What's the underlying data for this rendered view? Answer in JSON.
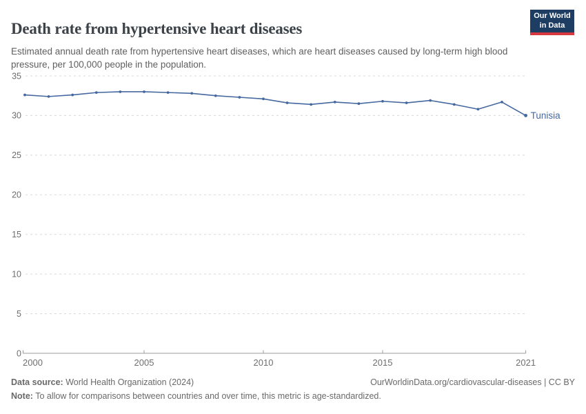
{
  "header": {
    "title": "Death rate from hypertensive heart diseases",
    "subtitle": "Estimated annual death rate from hypertensive heart diseases, which are heart diseases caused by long-term high blood pressure, per 100,000 people in the population.",
    "logo": {
      "line1": "Our World",
      "line2": "in Data",
      "bg_color": "#1d3d63",
      "accent_color": "#d7383f"
    }
  },
  "chart_data": {
    "type": "line",
    "title": "Death rate from hypertensive heart diseases",
    "x": [
      2000,
      2001,
      2002,
      2003,
      2004,
      2005,
      2006,
      2007,
      2008,
      2009,
      2010,
      2011,
      2012,
      2013,
      2014,
      2015,
      2016,
      2017,
      2018,
      2019,
      2020,
      2021
    ],
    "series": [
      {
        "name": "Tunisia",
        "color": "#44689f",
        "values": [
          32.6,
          32.4,
          32.6,
          32.9,
          33.0,
          33.0,
          32.9,
          32.8,
          32.5,
          32.3,
          32.1,
          31.6,
          31.4,
          31.7,
          31.5,
          31.8,
          31.6,
          31.9,
          31.4,
          30.8,
          31.7,
          30.0
        ]
      }
    ],
    "xlabel": "",
    "ylabel": "",
    "x_range": [
      2000,
      2021
    ],
    "ylim": [
      0,
      35
    ],
    "yticks": [
      0,
      5,
      10,
      15,
      20,
      25,
      30,
      35
    ],
    "xticks": [
      2000,
      2005,
      2010,
      2015,
      2021
    ],
    "grid": "horizontal-dashed",
    "legend_position": "end-of-line-label",
    "end_label": "Tunisia",
    "grid_color": "#d8d8d8",
    "axis_color": "#9b9b9b",
    "tick_label_color": "#6e6e6e"
  },
  "footer": {
    "data_source_label": "Data source:",
    "data_source": "World Health Organization (2024)",
    "attribution": "OurWorldinData.org/cardiovascular-diseases | CC BY",
    "note_label": "Note:",
    "note": "To allow for comparisons between countries and over time, this metric is age-standardized."
  }
}
